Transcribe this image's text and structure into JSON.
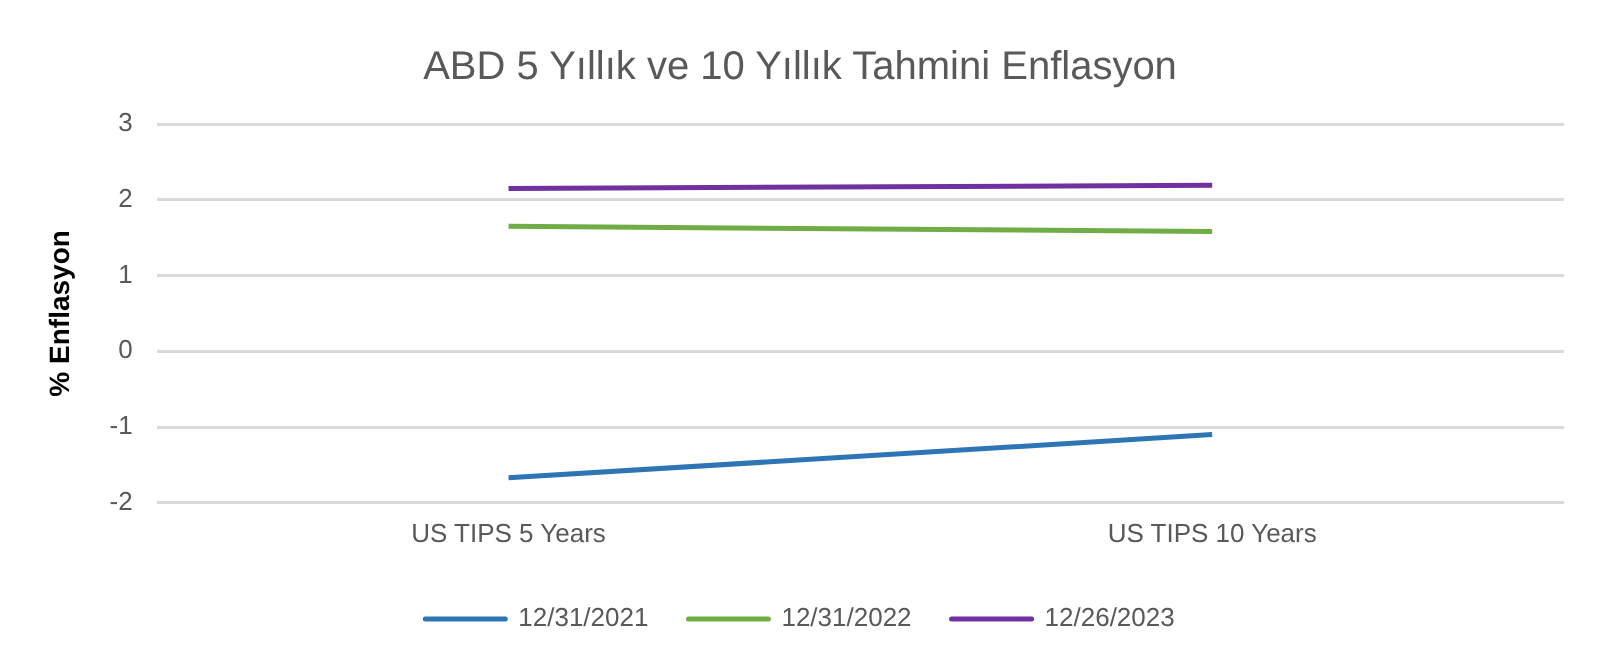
{
  "chart_data": {
    "type": "line",
    "title": "ABD 5 Yıllık ve 10 Yıllık Tahmini Enflasyon",
    "ylabel": "% Enflasyon",
    "categories": [
      "US TIPS 5 Years",
      "US TIPS 10 Years"
    ],
    "series": [
      {
        "name": "12/31/2021",
        "color": "#2e75b6",
        "values": [
          -1.67,
          -1.1
        ]
      },
      {
        "name": "12/31/2022",
        "color": "#70ad47",
        "values": [
          1.65,
          1.58
        ]
      },
      {
        "name": "12/26/2023",
        "color": "#7030a0",
        "values": [
          2.15,
          2.19
        ]
      }
    ],
    "ylim": [
      -2,
      3
    ],
    "yticks": [
      -2,
      -1,
      0,
      1,
      2,
      3
    ],
    "grid": "y",
    "legend": "bottom",
    "marker": "none",
    "line_style": "solid"
  }
}
